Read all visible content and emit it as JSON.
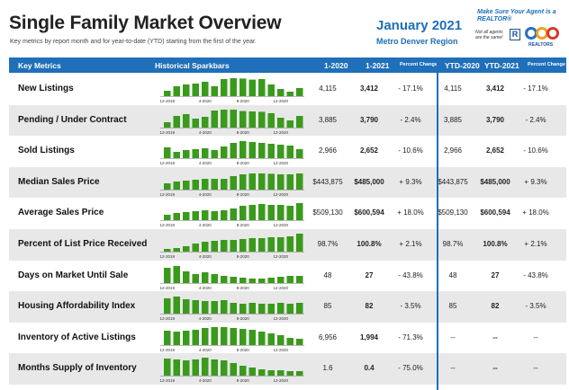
{
  "header": {
    "title": "Single Family Market Overview",
    "subtitle": "Key metrics by report month and for year-to-date (YTD) starting from the first of the year.",
    "report_month": "January 2021",
    "region": "Metro Denver Region",
    "tagline": "Make Sure Your Agent is a REALTOR®",
    "tagline_sub": "Not all agents are the same!",
    "logo_r": "R",
    "logo_text": "REALTORS"
  },
  "columns": {
    "metric": "Key Metrics",
    "sparkbars": "Historical Sparkbars",
    "m2020": "1-2020",
    "m2021": "1-2021",
    "pct": "Percent Change",
    "ytd2020": "YTD-2020",
    "ytd2021": "YTD-2021",
    "ytdpct": "Percent Change"
  },
  "spark_axis": [
    "12-2019",
    "4-2020",
    "8-2020",
    "12-2020"
  ],
  "bar_color": "#3a9a1c",
  "rows": [
    {
      "label": "New Listings",
      "v2020": "4,115",
      "v2021": "3,412",
      "pct": "- 17.1%",
      "ytd2020": "4,115",
      "ytd2021": "3,412",
      "ytdpct": "- 17.1%",
      "bars": [
        0.3,
        0.55,
        0.65,
        0.7,
        0.8,
        0.55,
        0.95,
        1.0,
        0.98,
        0.92,
        0.95,
        0.65,
        0.4,
        0.25,
        0.45
      ]
    },
    {
      "label": "Pending / Under Contract",
      "v2020": "3,885",
      "v2021": "3,790",
      "pct": "- 2.4%",
      "ytd2020": "3,885",
      "ytd2021": "3,790",
      "ytdpct": "- 2.4%",
      "bars": [
        0.3,
        0.65,
        0.75,
        0.5,
        0.6,
        0.95,
        1.0,
        1.0,
        0.92,
        0.9,
        0.88,
        0.8,
        0.55,
        0.4,
        0.65
      ]
    },
    {
      "label": "Sold Listings",
      "v2020": "2,966",
      "v2021": "2,652",
      "pct": "- 10.6%",
      "ytd2020": "2,966",
      "ytd2021": "2,652",
      "ytdpct": "- 10.6%",
      "bars": [
        0.6,
        0.35,
        0.45,
        0.5,
        0.55,
        0.45,
        0.65,
        0.85,
        0.95,
        0.9,
        0.85,
        0.8,
        0.75,
        0.7,
        0.5
      ]
    },
    {
      "label": "Median Sales Price",
      "v2020": "$443,875",
      "v2021": "$485,000",
      "pct": "+ 9.3%",
      "ytd2020": "$443,875",
      "ytd2021": "$485,000",
      "ytdpct": "+ 9.3%",
      "bars": [
        0.35,
        0.45,
        0.5,
        0.55,
        0.6,
        0.6,
        0.6,
        0.75,
        0.85,
        0.9,
        0.9,
        0.88,
        0.85,
        0.85,
        0.9
      ]
    },
    {
      "label": "Average Sales Price",
      "v2020": "$509,130",
      "v2021": "$600,594",
      "pct": "+ 18.0%",
      "ytd2020": "$509,130",
      "ytd2021": "$600,594",
      "ytdpct": "+ 18.0%",
      "bars": [
        0.3,
        0.4,
        0.45,
        0.5,
        0.55,
        0.5,
        0.55,
        0.65,
        0.8,
        0.85,
        0.9,
        0.85,
        0.85,
        0.8,
        0.95
      ]
    },
    {
      "label": "Percent of List Price Received",
      "v2020": "98.7%",
      "v2021": "100.8%",
      "pct": "+ 2.1%",
      "ytd2020": "98.7%",
      "ytd2021": "100.8%",
      "ytdpct": "+ 2.1%",
      "bars": [
        0.15,
        0.2,
        0.3,
        0.45,
        0.55,
        0.6,
        0.65,
        0.65,
        0.7,
        0.75,
        0.75,
        0.8,
        0.8,
        0.85,
        1.0
      ]
    },
    {
      "label": "Days on Market Until Sale",
      "v2020": "48",
      "v2021": "27",
      "pct": "- 43.8%",
      "ytd2020": "48",
      "ytd2021": "27",
      "ytdpct": "- 43.8%",
      "bars": [
        0.85,
        0.95,
        0.65,
        0.5,
        0.6,
        0.5,
        0.4,
        0.35,
        0.3,
        0.25,
        0.25,
        0.3,
        0.35,
        0.4,
        0.4
      ]
    },
    {
      "label": "Housing Affordability Index",
      "v2020": "85",
      "v2021": "82",
      "pct": "- 3.5%",
      "ytd2020": "85",
      "ytd2021": "82",
      "ytdpct": "- 3.5%",
      "bars": [
        0.85,
        0.95,
        0.8,
        0.75,
        0.7,
        0.7,
        0.75,
        0.6,
        0.55,
        0.6,
        0.55,
        0.55,
        0.6,
        0.55,
        0.6
      ]
    },
    {
      "label": "Inventory of Active Listings",
      "v2020": "6,956",
      "v2021": "1,994",
      "pct": "- 71.3%",
      "ytd2020": "--",
      "ytd2021": "--",
      "ytdpct": "--",
      "bars": [
        0.8,
        0.75,
        0.8,
        0.85,
        0.95,
        1.0,
        1.0,
        0.95,
        0.9,
        0.85,
        0.75,
        0.65,
        0.55,
        0.4,
        0.35
      ]
    },
    {
      "label": "Months Supply of Inventory",
      "v2020": "1.6",
      "v2021": "0.4",
      "pct": "- 75.0%",
      "ytd2020": "--",
      "ytd2021": "--",
      "ytdpct": "--",
      "bars": [
        0.95,
        0.9,
        0.85,
        0.9,
        1.0,
        0.9,
        0.85,
        0.7,
        0.55,
        0.45,
        0.35,
        0.3,
        0.3,
        0.25,
        0.25
      ]
    }
  ]
}
